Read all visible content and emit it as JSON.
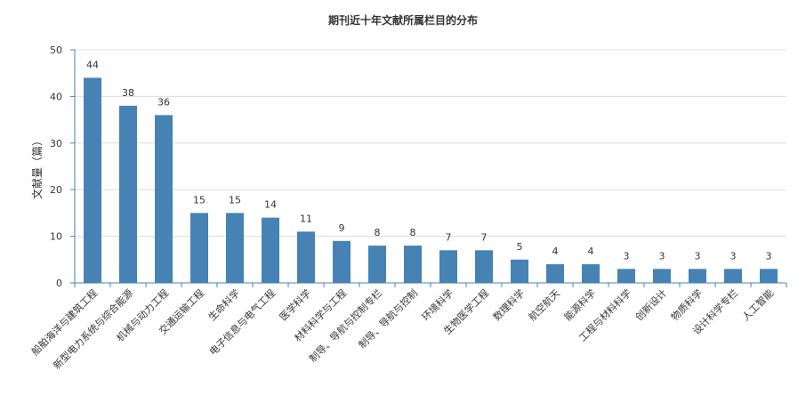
{
  "chart_data": {
    "type": "bar",
    "title": "期刊近十年文献所属栏目的分布",
    "xlabel": "",
    "ylabel": "文献量（篇）",
    "ylim": [
      0,
      50
    ],
    "yticks": [
      0,
      10,
      20,
      30,
      40,
      50
    ],
    "grid": true,
    "legend": "none",
    "bar_color": "#4682b4",
    "categories": [
      "船舶海洋与建筑工程",
      "新型电力系统与综合能源",
      "机械与动力工程",
      "交通运输工程",
      "生命科学",
      "电子信息与电气工程",
      "医学科学",
      "材料科学与工程",
      "制导、导航与控制专栏",
      "制导、导航与控制",
      "环境科学",
      "生物医学工程",
      "数理科学",
      "航空航天",
      "能源科学",
      "工程与材料科学",
      "创新设计",
      "物质科学",
      "设计科学专栏",
      "人工智能"
    ],
    "values": [
      44,
      38,
      36,
      15,
      15,
      14,
      11,
      9,
      8,
      8,
      7,
      7,
      5,
      4,
      4,
      3,
      3,
      3,
      3,
      3
    ]
  }
}
